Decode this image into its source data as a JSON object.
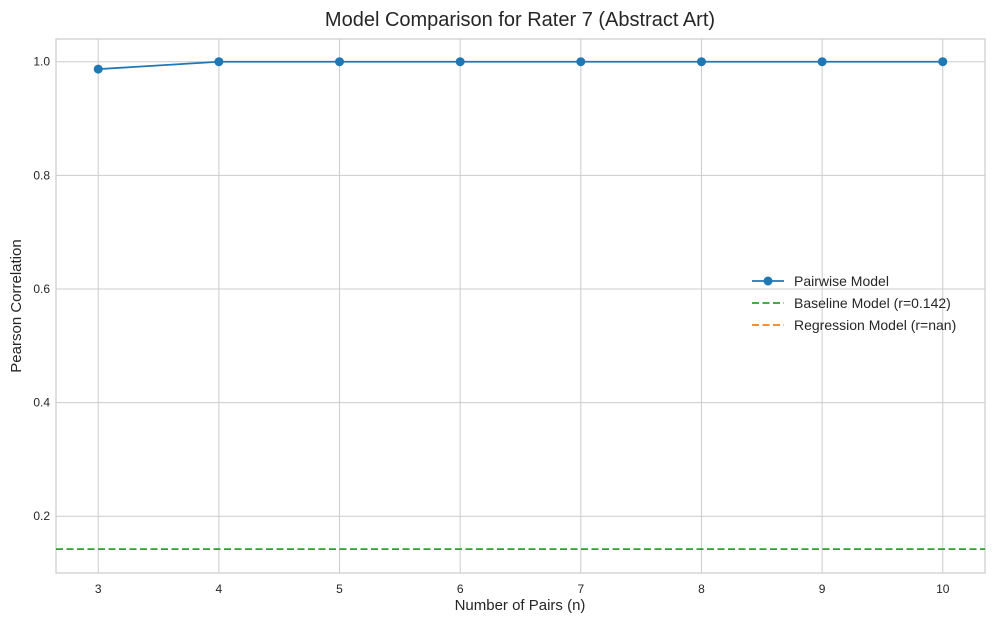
{
  "chart_data": {
    "type": "line",
    "title": "Model Comparison for Rater 7 (Abstract Art)",
    "xlabel": "Number of Pairs (n)",
    "ylabel": "Pearson Correlation",
    "xlim": [
      2.65,
      10.35
    ],
    "ylim": [
      0.1,
      1.04
    ],
    "xticks": [
      3,
      4,
      5,
      6,
      7,
      8,
      9,
      10
    ],
    "yticks": [
      0.2,
      0.4,
      0.6,
      0.8,
      1.0
    ],
    "ytick_labels": [
      "0.2",
      "0.4",
      "0.6",
      "0.8",
      "1.0"
    ],
    "grid": true,
    "legend_position": "center-right",
    "series": [
      {
        "name": "Pairwise Model",
        "color": "#1f77b4",
        "marker": "circle",
        "x": [
          3,
          4,
          5,
          6,
          7,
          8,
          9,
          10
        ],
        "y": [
          0.987,
          1.0,
          1.0,
          1.0,
          1.0,
          1.0,
          1.0,
          1.0
        ]
      }
    ],
    "reference_lines": [
      {
        "name": "Baseline Model (r=0.142)",
        "y": 0.142,
        "color": "#2ca02c",
        "style": "dashed"
      },
      {
        "name": "Regression Model (r=nan)",
        "y": null,
        "color": "#ff7f0e",
        "style": "dashed"
      }
    ]
  }
}
